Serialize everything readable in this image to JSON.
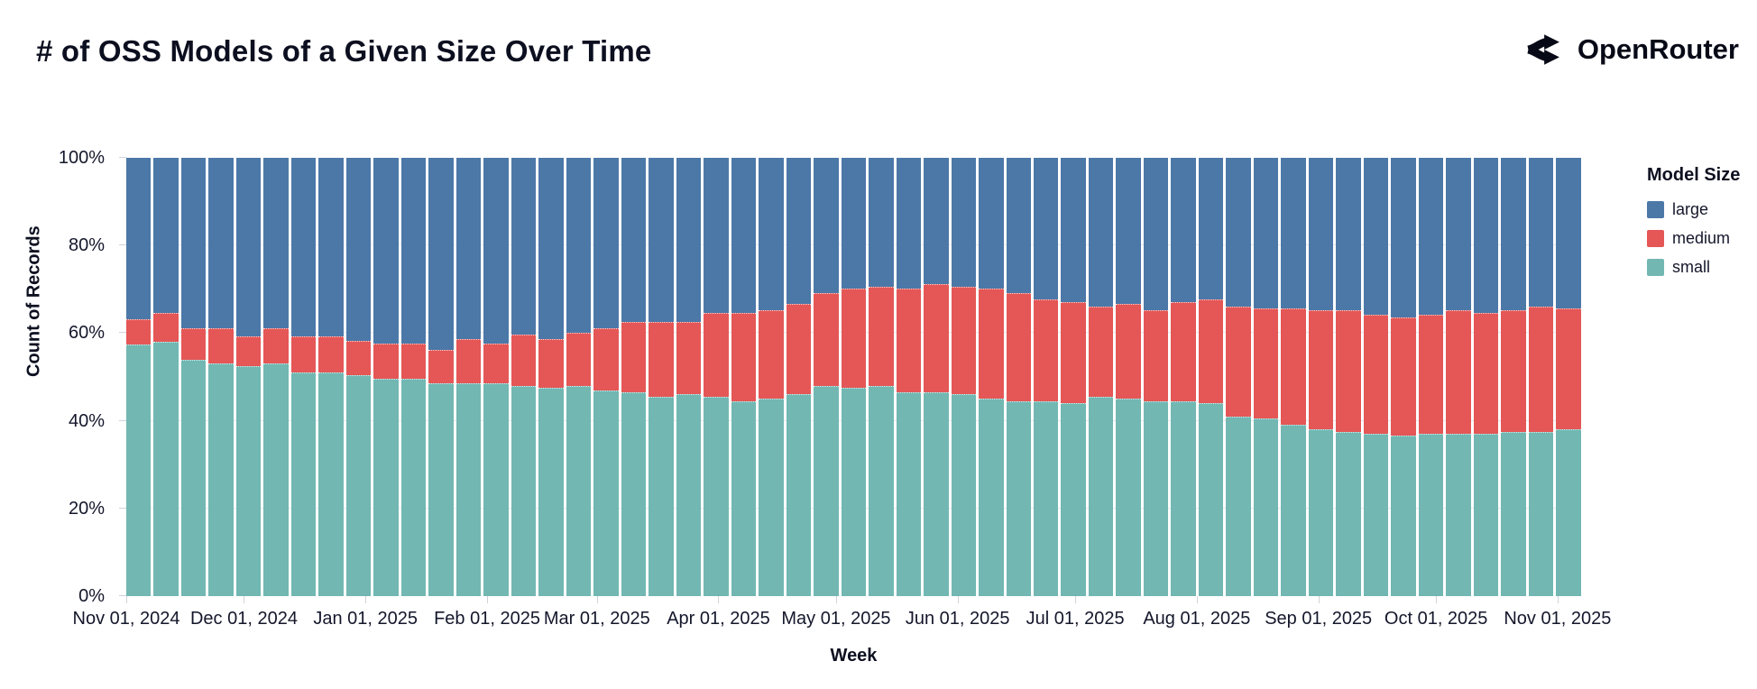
{
  "header": {
    "brand": "OpenRouter",
    "logo_icon": "openrouter-arrows"
  },
  "chart_data": {
    "type": "bar",
    "stacked": true,
    "normalized_percent": true,
    "grid": true,
    "legend_position": "right",
    "title": "# of OSS Models of a Given Size Over Time",
    "xlabel": "Week",
    "ylabel": "Count of Records",
    "legend_title": "Model Size",
    "legend_order": [
      "large",
      "medium",
      "small"
    ],
    "ylim": [
      0,
      100
    ],
    "y_ticks": [
      {
        "v": 0,
        "label": "0%"
      },
      {
        "v": 20,
        "label": "20%"
      },
      {
        "v": 40,
        "label": "40%"
      },
      {
        "v": 60,
        "label": "60%"
      },
      {
        "v": 80,
        "label": "80%"
      },
      {
        "v": 100,
        "label": "100%"
      }
    ],
    "gridline_values": [
      20,
      40,
      60,
      80
    ],
    "x_ticks": [
      {
        "pct": 0,
        "label": "Nov 01, 2024"
      },
      {
        "pct": 8.09,
        "label": "Dec 01, 2024"
      },
      {
        "pct": 16.44,
        "label": "Jan 01, 2025"
      },
      {
        "pct": 24.8,
        "label": "Feb 01, 2025"
      },
      {
        "pct": 32.35,
        "label": "Mar 01, 2025"
      },
      {
        "pct": 40.7,
        "label": "Apr 01, 2025"
      },
      {
        "pct": 48.79,
        "label": "May 01, 2025"
      },
      {
        "pct": 57.14,
        "label": "Jun 01, 2025"
      },
      {
        "pct": 65.23,
        "label": "Jul 01, 2025"
      },
      {
        "pct": 73.58,
        "label": "Aug 01, 2025"
      },
      {
        "pct": 81.94,
        "label": "Sep 01, 2025"
      },
      {
        "pct": 90.03,
        "label": "Oct 01, 2025"
      },
      {
        "pct": 98.38,
        "label": "Nov 01, 2025"
      }
    ],
    "categories": [
      "2024-11-01",
      "2024-11-08",
      "2024-11-15",
      "2024-11-22",
      "2024-11-29",
      "2024-12-06",
      "2024-12-13",
      "2024-12-20",
      "2024-12-27",
      "2025-01-03",
      "2025-01-10",
      "2025-01-17",
      "2025-01-24",
      "2025-01-31",
      "2025-02-07",
      "2025-02-14",
      "2025-02-21",
      "2025-02-28",
      "2025-03-07",
      "2025-03-14",
      "2025-03-21",
      "2025-03-28",
      "2025-04-04",
      "2025-04-11",
      "2025-04-18",
      "2025-04-25",
      "2025-05-02",
      "2025-05-09",
      "2025-05-16",
      "2025-05-23",
      "2025-05-30",
      "2025-06-06",
      "2025-06-13",
      "2025-06-20",
      "2025-06-27",
      "2025-07-04",
      "2025-07-11",
      "2025-07-18",
      "2025-07-25",
      "2025-08-01",
      "2025-08-08",
      "2025-08-15",
      "2025-08-22",
      "2025-08-29",
      "2025-09-05",
      "2025-09-12",
      "2025-09-19",
      "2025-09-26",
      "2025-10-03",
      "2025-10-10",
      "2025-10-17",
      "2025-10-24",
      "2025-10-31"
    ],
    "series": [
      {
        "name": "small",
        "color": "#72b7b2",
        "values": [
          57.5,
          58,
          54,
          53,
          52.5,
          53,
          51,
          51,
          50.5,
          49.5,
          49.5,
          48.5,
          48.5,
          48.5,
          48,
          47.5,
          48,
          47,
          46.5,
          45.5,
          46,
          45.5,
          44.5,
          45,
          46,
          48,
          47.5,
          48,
          46.5,
          46.5,
          46,
          45,
          44.5,
          44.5,
          44,
          45.5,
          45,
          44.5,
          44.5,
          44,
          41,
          40.5,
          39,
          38,
          37.5,
          37,
          36.5,
          37,
          37,
          37,
          37.5,
          37.5,
          38
        ]
      },
      {
        "name": "medium",
        "color": "#e45756",
        "values": [
          5.5,
          6.5,
          7,
          8,
          6.5,
          8,
          8,
          8,
          7.5,
          8,
          8,
          7.5,
          10,
          9,
          11.5,
          11,
          12,
          14,
          16,
          17,
          16.5,
          19,
          20,
          20,
          20.5,
          21,
          22.5,
          22.5,
          23.5,
          24.5,
          24.5,
          25,
          24.5,
          23,
          23,
          20.5,
          21.5,
          20.5,
          22.5,
          23.5,
          25,
          25,
          26.5,
          27,
          27.5,
          27,
          27,
          27,
          28,
          27.5,
          27.5,
          28.5,
          27.5
        ]
      },
      {
        "name": "large",
        "color": "#4c78a8",
        "values": [
          37,
          35.5,
          39,
          39,
          41,
          39,
          41,
          41,
          42,
          42.5,
          42.5,
          44,
          41.5,
          42.5,
          40.5,
          41.5,
          40,
          39,
          37.5,
          37.5,
          37.5,
          35.5,
          35.5,
          35,
          33.5,
          31,
          30,
          29.5,
          30,
          29,
          29.5,
          30,
          31,
          32.5,
          33,
          34,
          33.5,
          35,
          33,
          32.5,
          34,
          34.5,
          34.5,
          35,
          35,
          36,
          36.5,
          36,
          35,
          35.5,
          35,
          34,
          34.5
        ]
      }
    ]
  }
}
